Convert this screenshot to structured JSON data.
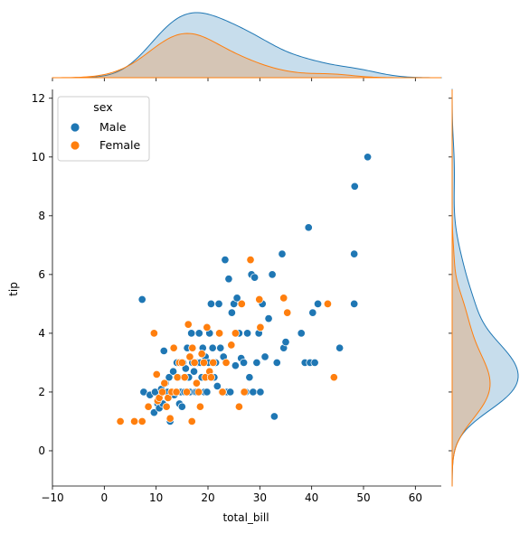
{
  "chart_data": {
    "type": "scatter",
    "subtype": "jointplot",
    "title": "",
    "xlabel": "total_bill",
    "ylabel": "tip",
    "xlim": [
      -10,
      65
    ],
    "ylim": [
      -1.2,
      12.3
    ],
    "xticks": [
      -10,
      0,
      10,
      20,
      30,
      40,
      50,
      60
    ],
    "yticks": [
      0,
      2,
      4,
      6,
      8,
      10,
      12
    ],
    "grid": false,
    "legend": {
      "title": "sex",
      "position": "upper-left"
    },
    "marginal_x": "kde",
    "marginal_y": "kde",
    "series": [
      {
        "name": "Male",
        "color": "#1f77b4",
        "points": [
          [
            7.3,
            5.15
          ],
          [
            7.6,
            2.0
          ],
          [
            8.8,
            1.9
          ],
          [
            9.6,
            1.3
          ],
          [
            9.8,
            2.0
          ],
          [
            10.3,
            1.6
          ],
          [
            10.6,
            1.45
          ],
          [
            11.0,
            2.1
          ],
          [
            11.3,
            1.6
          ],
          [
            11.5,
            3.4
          ],
          [
            11.8,
            2.3
          ],
          [
            12.2,
            2.0
          ],
          [
            12.5,
            2.5
          ],
          [
            12.7,
            1.0
          ],
          [
            13.0,
            2.0
          ],
          [
            13.3,
            2.7
          ],
          [
            13.5,
            1.9
          ],
          [
            13.8,
            2.0
          ],
          [
            14.0,
            3.0
          ],
          [
            14.3,
            2.5
          ],
          [
            14.5,
            1.6
          ],
          [
            14.8,
            2.0
          ],
          [
            15.0,
            1.5
          ],
          [
            15.2,
            3.0
          ],
          [
            15.5,
            2.0
          ],
          [
            15.7,
            2.8
          ],
          [
            16.0,
            3.5
          ],
          [
            16.3,
            2.5
          ],
          [
            16.5,
            2.0
          ],
          [
            16.8,
            4.0
          ],
          [
            17.0,
            3.0
          ],
          [
            17.3,
            2.7
          ],
          [
            17.5,
            2.0
          ],
          [
            17.8,
            2.0
          ],
          [
            18.0,
            3.0
          ],
          [
            18.3,
            4.0
          ],
          [
            18.5,
            3.0
          ],
          [
            18.8,
            2.5
          ],
          [
            19.0,
            3.5
          ],
          [
            19.3,
            2.0
          ],
          [
            19.5,
            3.2
          ],
          [
            19.8,
            2.0
          ],
          [
            20.1,
            3.0
          ],
          [
            20.3,
            4.0
          ],
          [
            20.6,
            5.0
          ],
          [
            20.9,
            3.5
          ],
          [
            21.2,
            2.5
          ],
          [
            21.5,
            3.0
          ],
          [
            21.8,
            2.2
          ],
          [
            22.1,
            5.0
          ],
          [
            22.4,
            3.5
          ],
          [
            22.7,
            2.0
          ],
          [
            23.0,
            3.2
          ],
          [
            23.3,
            6.5
          ],
          [
            23.7,
            2.0
          ],
          [
            24.0,
            5.85
          ],
          [
            24.3,
            2.0
          ],
          [
            24.6,
            4.7
          ],
          [
            25.0,
            5.0
          ],
          [
            25.3,
            2.9
          ],
          [
            25.6,
            5.2
          ],
          [
            26.0,
            4.0
          ],
          [
            26.4,
            3.15
          ],
          [
            26.9,
            3.0
          ],
          [
            27.3,
            2.0
          ],
          [
            27.6,
            4.0
          ],
          [
            28.0,
            2.5
          ],
          [
            28.4,
            6.0
          ],
          [
            28.7,
            2.0
          ],
          [
            29.0,
            5.9
          ],
          [
            29.4,
            3.0
          ],
          [
            29.8,
            4.0
          ],
          [
            30.1,
            2.0
          ],
          [
            30.5,
            5.0
          ],
          [
            31.0,
            3.2
          ],
          [
            31.7,
            4.5
          ],
          [
            32.4,
            6.0
          ],
          [
            32.8,
            1.17
          ],
          [
            33.3,
            3.0
          ],
          [
            34.3,
            6.7
          ],
          [
            34.6,
            3.5
          ],
          [
            35.0,
            3.7
          ],
          [
            38.0,
            4.0
          ],
          [
            38.7,
            3.0
          ],
          [
            39.4,
            7.6
          ],
          [
            39.7,
            3.0
          ],
          [
            40.2,
            4.7
          ],
          [
            40.6,
            3.0
          ],
          [
            41.2,
            5.0
          ],
          [
            45.4,
            3.5
          ],
          [
            48.2,
            6.7
          ],
          [
            48.3,
            9.0
          ],
          [
            48.2,
            5.0
          ],
          [
            50.8,
            10.0
          ]
        ]
      },
      {
        "name": "Female",
        "color": "#ff7f0e",
        "points": [
          [
            3.1,
            1.0
          ],
          [
            5.8,
            1.0
          ],
          [
            7.3,
            1.0
          ],
          [
            8.5,
            1.5
          ],
          [
            9.6,
            4.0
          ],
          [
            10.1,
            2.6
          ],
          [
            10.3,
            1.7
          ],
          [
            10.6,
            1.8
          ],
          [
            11.2,
            2.0
          ],
          [
            11.6,
            2.3
          ],
          [
            12.0,
            1.5
          ],
          [
            12.3,
            1.8
          ],
          [
            12.7,
            1.1
          ],
          [
            13.0,
            2.0
          ],
          [
            13.4,
            3.5
          ],
          [
            13.9,
            2.0
          ],
          [
            14.1,
            2.5
          ],
          [
            14.5,
            3.0
          ],
          [
            15.0,
            3.0
          ],
          [
            15.5,
            2.5
          ],
          [
            15.9,
            2.0
          ],
          [
            16.2,
            4.3
          ],
          [
            16.5,
            3.2
          ],
          [
            16.9,
            1.0
          ],
          [
            17.0,
            3.5
          ],
          [
            17.4,
            3.0
          ],
          [
            17.8,
            2.3
          ],
          [
            18.2,
            2.0
          ],
          [
            18.5,
            1.5
          ],
          [
            18.8,
            3.3
          ],
          [
            19.2,
            3.0
          ],
          [
            19.5,
            2.5
          ],
          [
            19.8,
            4.2
          ],
          [
            20.3,
            2.7
          ],
          [
            20.6,
            2.5
          ],
          [
            21.0,
            3.0
          ],
          [
            22.2,
            4.0
          ],
          [
            22.8,
            2.0
          ],
          [
            23.5,
            3.0
          ],
          [
            24.5,
            3.6
          ],
          [
            25.3,
            4.0
          ],
          [
            26.0,
            1.5
          ],
          [
            26.5,
            5.0
          ],
          [
            27.0,
            2.0
          ],
          [
            28.2,
            6.5
          ],
          [
            29.9,
            5.15
          ],
          [
            30.1,
            4.2
          ],
          [
            34.6,
            5.2
          ],
          [
            35.3,
            4.7
          ],
          [
            43.1,
            5.0
          ],
          [
            44.3,
            2.5
          ]
        ]
      }
    ]
  }
}
